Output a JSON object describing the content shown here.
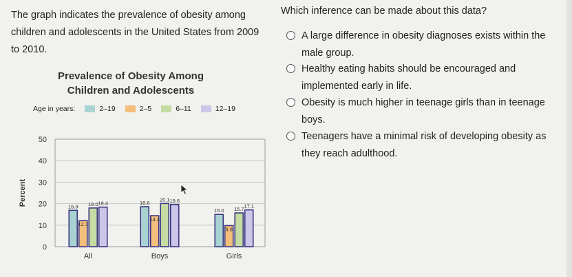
{
  "passage": "The graph indicates the prevalence of obesity among children and adolescents in the United States from 2009 to 2010.",
  "question": "Which inference can be made about this data?",
  "options": [
    "A large difference in obesity diagnoses exists within the male group.",
    "Healthy eating habits should be encouraged and implemented early in life.",
    "Obesity is much higher in teenage girls than in teenage boys.",
    "Teenagers have a minimal risk of developing obesity as they reach adulthood."
  ],
  "chart_data": {
    "type": "bar",
    "title": "Prevalence of Obesity Among Children and Adolescents",
    "legend_title": "Age in years:",
    "categories": [
      "All",
      "Boys",
      "Girls"
    ],
    "series": [
      {
        "name": "2–19",
        "values": [
          16.9,
          18.6,
          15.0
        ],
        "labels": [
          "16.9",
          "18.6",
          "15.0"
        ],
        "color": "#a9d3d2"
      },
      {
        "name": "2–5",
        "values": [
          12.1,
          14.4,
          9.8
        ],
        "labels": [
          "12.1",
          "14.4",
          "9.8"
        ],
        "color": "#f4bf7c"
      },
      {
        "name": "6–11",
        "values": [
          18.0,
          20.1,
          15.7
        ],
        "labels": [
          "18.0",
          "20.1",
          "15.7"
        ],
        "color": "#c5dca2"
      },
      {
        "name": "12–19",
        "values": [
          18.4,
          19.6,
          17.1
        ],
        "labels": [
          "18.4",
          "19.6",
          "17.1"
        ],
        "color": "#ccc7e8"
      }
    ],
    "ylabel": "Percent",
    "yticks": [
      "0",
      "10",
      "20",
      "30",
      "40",
      "50"
    ],
    "ylim": [
      0,
      50
    ],
    "grid": true,
    "legend_placement": "top"
  }
}
